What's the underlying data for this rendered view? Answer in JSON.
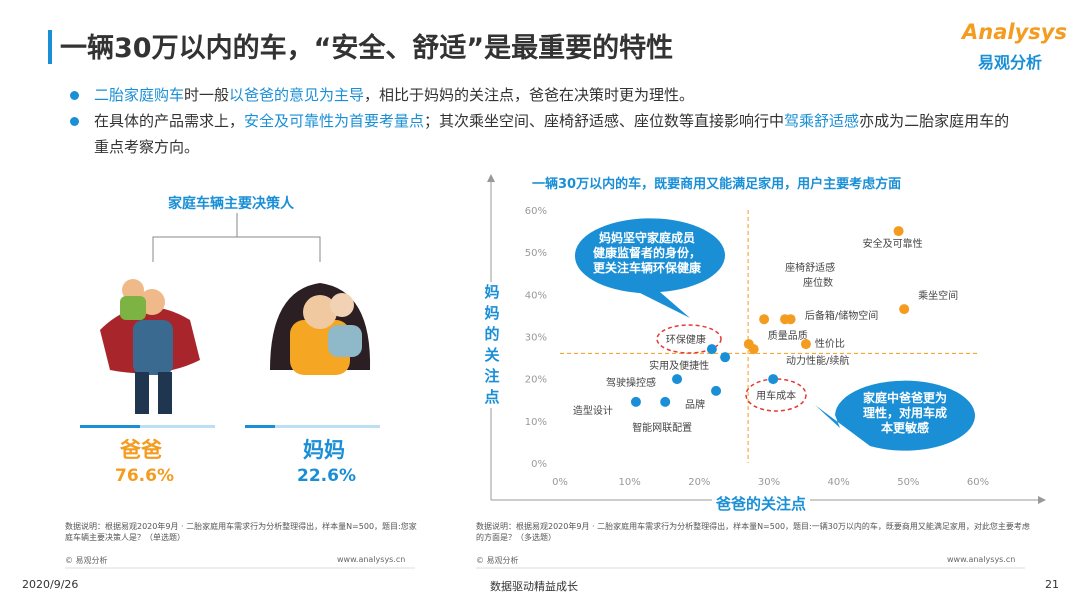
{
  "header": {
    "title": "一辆30万以内的车，“安全、舒适”是最重要的特性",
    "logo": "Analysys",
    "logo_cn": "易观分析"
  },
  "bullets": [
    [
      {
        "text": "二胎家庭购车",
        "highlight": true
      },
      {
        "text": "时一般",
        "highlight": false
      },
      {
        "text": "以爸爸的意见为主导",
        "highlight": true
      },
      {
        "text": "，相比于妈妈的关注点，爸爸在决策时更为理性。",
        "highlight": false
      }
    ],
    [
      {
        "text": "在具体的产品需求上，",
        "highlight": false
      },
      {
        "text": "安全及可靠性为首要考量点",
        "highlight": true
      },
      {
        "text": "；其次乘坐空间、座椅舒适感、座位数等直接影响行中",
        "highlight": false
      },
      {
        "text": "驾乘舒适感",
        "highlight": true
      },
      {
        "text": "亦成为二胎家庭用车的重点考察方向。",
        "highlight": false
      }
    ]
  ],
  "decision": {
    "title": "家庭车辆主要决策人",
    "dad": {
      "label": "爸爸",
      "share": "76.6%"
    },
    "mom": {
      "label": "妈妈",
      "share": "22.6%"
    },
    "note": "数据说明：根据易观2020年9月 · 二胎家庭用车需求行为分析整理得出，样本量N=500，题目:您家庭车辆主要决策人是？（单选题）",
    "source": "© 易观分析",
    "site": "www.analysys.cn"
  },
  "chart_data": {
    "type": "scatter",
    "title": "一辆30万以内的车，既要商用又能满足家用，用户主要考虑方面",
    "x_label": "爸爸的关注点",
    "y_label": "妈妈的关注点",
    "xlim": [
      0,
      60
    ],
    "ylim": [
      0,
      60
    ],
    "xticks": [
      {
        "value": 0,
        "label": "0%"
      },
      {
        "value": 10,
        "label": "10%"
      },
      {
        "value": 20,
        "label": "20%"
      },
      {
        "value": 30,
        "label": "30%"
      },
      {
        "value": 40,
        "label": "40%"
      },
      {
        "value": 50,
        "label": "50%"
      },
      {
        "value": 60,
        "label": "60%"
      }
    ],
    "yticks": [
      {
        "value": 0,
        "label": "0%"
      },
      {
        "value": 10,
        "label": "10%"
      },
      {
        "value": 20,
        "label": "20%"
      },
      {
        "value": 30,
        "label": "30%"
      },
      {
        "value": 40,
        "label": "40%"
      },
      {
        "value": 50,
        "label": "50%"
      },
      {
        "value": 60,
        "label": "60%"
      }
    ],
    "reference_lines": {
      "x": 27,
      "y": 26
    },
    "series": [
      {
        "color": "#f39c1f",
        "labels": [
          "安全及可靠性",
          "乘坐空间",
          "座椅舒适感",
          "座位数",
          "后备箱/储物空间",
          "质量品质",
          "动力性能/续航",
          "性价比"
        ],
        "x": [
          48.6,
          49.4,
          29.3,
          32.3,
          33.1,
          27.1,
          27.8,
          35.3
        ],
        "values": [
          55,
          36.5,
          34.1,
          34.1,
          34.1,
          28.2,
          27,
          28.2
        ]
      },
      {
        "color": "#1a8fd6",
        "labels": [
          "环保健康",
          "实用及便捷性",
          "驾驶操控感",
          "用车成本",
          "品牌",
          "造型设计",
          "智能网联配置"
        ],
        "x": [
          21.8,
          23.7,
          16.8,
          30.6,
          22.4,
          10.9,
          15.1
        ],
        "values": [
          27,
          25.1,
          19.9,
          19.9,
          17.1,
          14.5,
          14.5
        ]
      }
    ],
    "callouts": [
      {
        "lines": [
          "妈妈坚守家庭成员",
          "健康监督者的身份，",
          "更关注车辆环保健康"
        ]
      },
      {
        "lines": [
          "家庭中爸爸更为",
          "理性，对用车成",
          "本更敏感"
        ]
      }
    ],
    "note": "数据说明：根据易观2020年9月 · 二胎家庭用车需求行为分析整理得出，样本量N=500，题目:一辆30万以内的车，既要商用又能满足家用，对此您主要考虑的方面是？（多选题）",
    "source": "© 易观分析",
    "site": "www.analysys.cn"
  },
  "footer": {
    "date": "2020/9/26",
    "slogan": "数据驱动精益成长",
    "page": "21"
  }
}
